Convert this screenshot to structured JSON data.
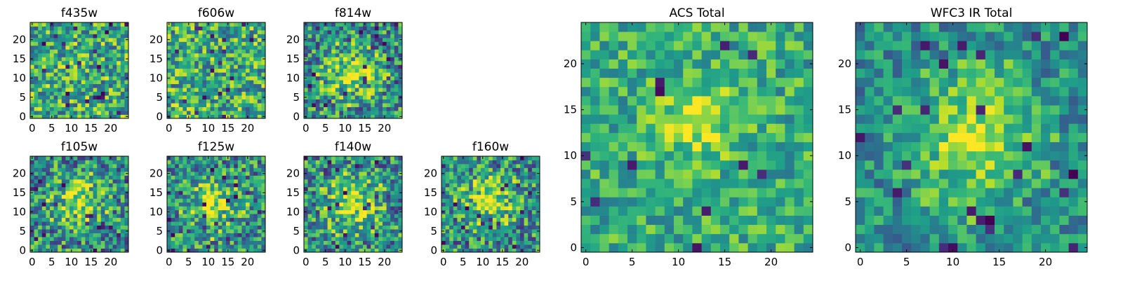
{
  "chart_data": [
    {
      "type": "heatmap",
      "title": "f435w",
      "xticks": [
        "0",
        "5",
        "10",
        "15",
        "20"
      ],
      "yticks": [
        "0",
        "5",
        "10",
        "15",
        "20"
      ],
      "xlim": [
        -0.5,
        24.5
      ],
      "ylim": [
        -0.5,
        24.5
      ],
      "size": 25,
      "colormap": "viridis",
      "peak": null,
      "grid": false
    },
    {
      "type": "heatmap",
      "title": "f606w",
      "xticks": [
        "0",
        "5",
        "10",
        "15",
        "20"
      ],
      "yticks": [
        "0",
        "5",
        "10",
        "15",
        "20"
      ],
      "xlim": [
        -0.5,
        24.5
      ],
      "ylim": [
        -0.5,
        24.5
      ],
      "size": 25,
      "colormap": "viridis",
      "peak": null,
      "grid": false
    },
    {
      "type": "heatmap",
      "title": "f814w",
      "xticks": [
        "0",
        "5",
        "10",
        "15",
        "20"
      ],
      "yticks": [
        "0",
        "5",
        "10",
        "15",
        "20"
      ],
      "xlim": [
        -0.5,
        24.5
      ],
      "ylim": [
        -0.5,
        24.5
      ],
      "size": 25,
      "colormap": "viridis",
      "peak": [
        12,
        11
      ],
      "grid": false
    },
    {
      "type": "heatmap",
      "title": "f105w",
      "xticks": [
        "0",
        "5",
        "10",
        "15",
        "20"
      ],
      "yticks": [
        "0",
        "5",
        "10",
        "15",
        "20"
      ],
      "xlim": [
        -0.5,
        24.5
      ],
      "ylim": [
        -0.5,
        24.5
      ],
      "size": 25,
      "colormap": "viridis",
      "peak": [
        12,
        13
      ],
      "grid": false
    },
    {
      "type": "heatmap",
      "title": "f125w",
      "xticks": [
        "0",
        "5",
        "10",
        "15",
        "20"
      ],
      "yticks": [
        "0",
        "5",
        "10",
        "15",
        "20"
      ],
      "xlim": [
        -0.5,
        24.5
      ],
      "ylim": [
        -0.5,
        24.5
      ],
      "size": 25,
      "colormap": "viridis",
      "peak": [
        11,
        12
      ],
      "grid": false
    },
    {
      "type": "heatmap",
      "title": "f140w",
      "xticks": [
        "0",
        "5",
        "10",
        "15",
        "20"
      ],
      "yticks": [
        "0",
        "5",
        "10",
        "15",
        "20"
      ],
      "xlim": [
        -0.5,
        24.5
      ],
      "ylim": [
        -0.5,
        24.5
      ],
      "size": 25,
      "colormap": "viridis",
      "peak": [
        12,
        12
      ],
      "grid": false
    },
    {
      "type": "heatmap",
      "title": "f160w",
      "xticks": [
        "0",
        "5",
        "10",
        "15",
        "20"
      ],
      "yticks": [
        "0",
        "5",
        "10",
        "15",
        "20"
      ],
      "xlim": [
        -0.5,
        24.5
      ],
      "ylim": [
        -0.5,
        24.5
      ],
      "size": 25,
      "colormap": "viridis",
      "peak": [
        12,
        13
      ],
      "grid": false
    },
    {
      "type": "heatmap",
      "title": "ACS Total",
      "xticks": [
        "0",
        "5",
        "10",
        "15",
        "20"
      ],
      "yticks": [
        "0",
        "5",
        "10",
        "15",
        "20"
      ],
      "xlim": [
        -0.5,
        24.5
      ],
      "ylim": [
        -0.5,
        24.5
      ],
      "size": 25,
      "colormap": "viridis",
      "peak": [
        12,
        14
      ],
      "grid": false
    },
    {
      "type": "heatmap",
      "title": "WFC3 IR Total",
      "xticks": [
        "0",
        "5",
        "10",
        "15",
        "20"
      ],
      "yticks": [
        "0",
        "5",
        "10",
        "15",
        "20"
      ],
      "xlim": [
        -0.5,
        24.5
      ],
      "ylim": [
        -0.5,
        24.5
      ],
      "size": 25,
      "colormap": "viridis",
      "peak": [
        12,
        12
      ],
      "grid": false
    }
  ]
}
